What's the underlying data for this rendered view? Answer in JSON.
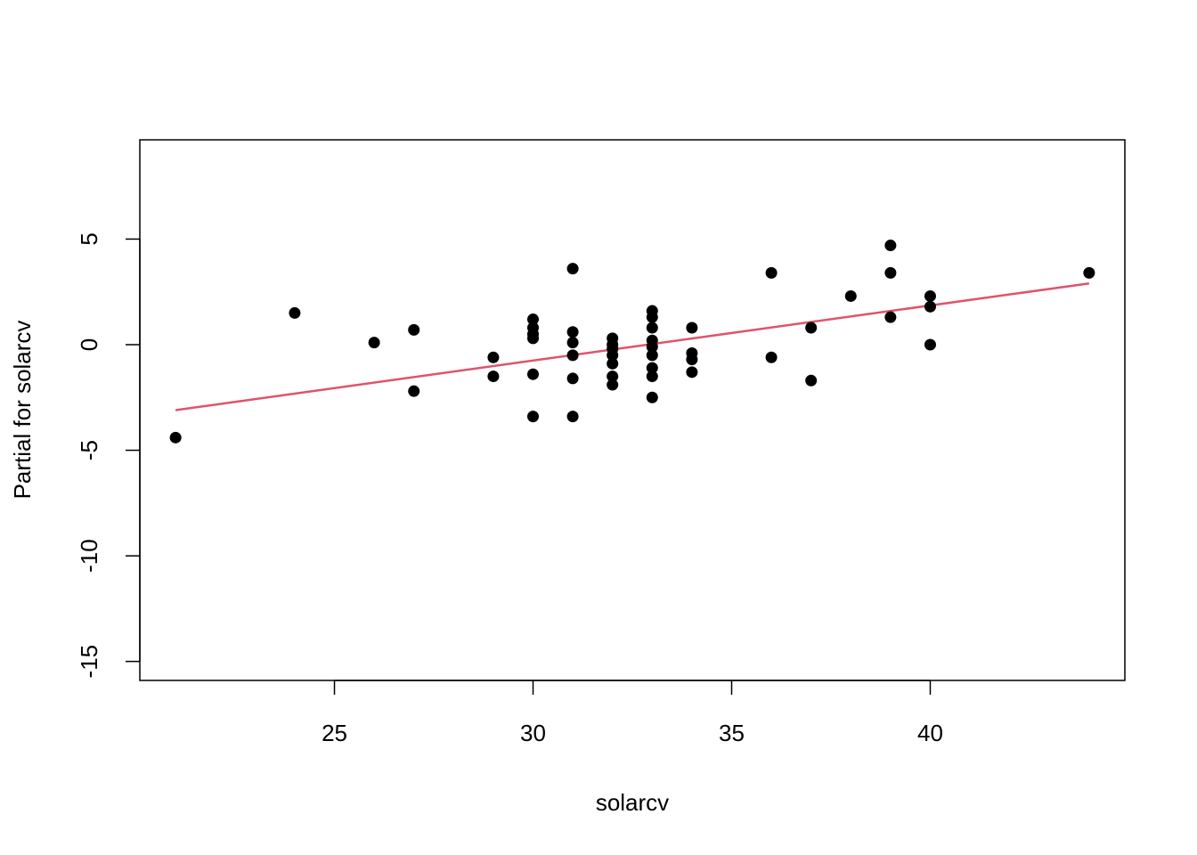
{
  "chart_data": {
    "type": "scatter",
    "title": "",
    "xlabel": "solarcv",
    "ylabel": "Partial for solarcv",
    "xlim": [
      20.1,
      44.9
    ],
    "ylim": [
      -15.9,
      9.7
    ],
    "x_ticks": [
      25,
      30,
      35,
      40
    ],
    "y_ticks": [
      -15,
      -10,
      -5,
      0,
      5
    ],
    "grid": false,
    "legend": "none",
    "point_color": "#000000",
    "line_color": "#DF536B",
    "series": [
      {
        "type": "scatter",
        "points": [
          [
            21,
            -4.4
          ],
          [
            24,
            1.5
          ],
          [
            26,
            0.1
          ],
          [
            27,
            0.7
          ],
          [
            27,
            -2.2
          ],
          [
            29,
            -0.6
          ],
          [
            29,
            -1.5
          ],
          [
            30,
            1.2
          ],
          [
            30,
            0.8
          ],
          [
            30,
            0.5
          ],
          [
            30,
            0.3
          ],
          [
            30,
            -1.4
          ],
          [
            30,
            -3.4
          ],
          [
            31,
            3.6
          ],
          [
            31,
            0.6
          ],
          [
            31,
            0.1
          ],
          [
            31,
            -0.5
          ],
          [
            31,
            -1.6
          ],
          [
            31,
            -3.4
          ],
          [
            32,
            0.3
          ],
          [
            32,
            0.0
          ],
          [
            32,
            -0.2
          ],
          [
            32,
            -0.5
          ],
          [
            32,
            -0.9
          ],
          [
            32,
            -1.5
          ],
          [
            32,
            -1.9
          ],
          [
            33,
            1.6
          ],
          [
            33,
            1.3
          ],
          [
            33,
            0.8
          ],
          [
            33,
            0.2
          ],
          [
            33,
            -0.1
          ],
          [
            33,
            -0.5
          ],
          [
            33,
            -1.1
          ],
          [
            33,
            -1.5
          ],
          [
            33,
            -2.5
          ],
          [
            34,
            0.8
          ],
          [
            34,
            -0.4
          ],
          [
            34,
            -0.7
          ],
          [
            34,
            -1.3
          ],
          [
            36,
            3.4
          ],
          [
            36,
            -0.6
          ],
          [
            37,
            0.8
          ],
          [
            37,
            -1.7
          ],
          [
            38,
            2.3
          ],
          [
            39,
            4.7
          ],
          [
            39,
            3.4
          ],
          [
            39,
            1.3
          ],
          [
            40,
            2.3
          ],
          [
            40,
            1.8
          ],
          [
            40,
            0.0
          ],
          [
            44,
            3.4
          ]
        ]
      },
      {
        "type": "line",
        "points": [
          [
            21,
            -3.1
          ],
          [
            44,
            2.9
          ]
        ]
      }
    ]
  }
}
